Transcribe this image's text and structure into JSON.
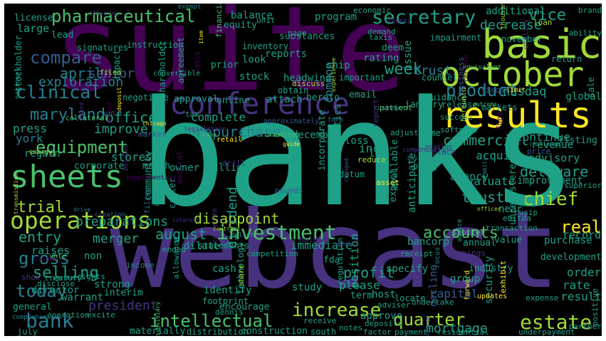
{
  "word_cloud": {
    "background_color": "#000000",
    "palette": [
      "#440154",
      "#46327e",
      "#365c8d",
      "#277f8e",
      "#1fa187",
      "#4ac16d",
      "#a0da39",
      "#fde725"
    ],
    "words": [
      "banks",
      "webcast",
      "suite",
      "results",
      "basic",
      "october",
      "sheets",
      "conference",
      "operations",
      "pharmaceutical",
      "secretary",
      "investment",
      "intellectual",
      "increase",
      "estate",
      "product",
      "compare",
      "clinical",
      "maryland",
      "equipment",
      "repurchase",
      "quarter",
      "bank",
      "today",
      "gross",
      "selling",
      "accounts",
      "chief",
      "real",
      "trial",
      "entry",
      "merger",
      "august",
      "disappoint",
      "president",
      "profit",
      "forward",
      "mortgage",
      "office",
      "nasdaq",
      "commercial",
      "trusts",
      "delaware",
      "week",
      "trust",
      "exploration",
      "april",
      "senior",
      "improve",
      "complete",
      "stores",
      "preparations",
      "dividend",
      "position",
      "immediate",
      "acquire",
      "evaluate",
      "agency",
      "continue",
      "revenue",
      "advisory",
      "improvement",
      "record",
      "purchase",
      "rate",
      "result",
      "order",
      "development",
      "vice",
      "common",
      "decrease",
      "additional",
      "balance",
      "program",
      "substances",
      "reports",
      "stock",
      "headwind",
      "ship",
      "rating",
      "look",
      "email",
      "january",
      "december",
      "loss",
      "low",
      "inc",
      "million",
      "owner",
      "march",
      "corporate",
      "regain",
      "raises",
      "director",
      "general",
      "warrant",
      "strong",
      "interim",
      "cash",
      "identify",
      "encourage",
      "study",
      "specify",
      "please",
      "approve",
      "construction",
      "materially",
      "distribution",
      "south",
      "july",
      "community",
      "incorporate",
      "expect",
      "anticipate",
      "therapeutics",
      "available",
      "fda",
      "term",
      "host",
      "capital",
      "decline",
      "group",
      "security",
      "unregistered",
      "near",
      "industry",
      "bancorp",
      "annual",
      "value",
      "dilute",
      "statements",
      "york",
      "press",
      "large",
      "license",
      "lead",
      "stockholder",
      "instruction",
      "impact",
      "signatures",
      "equity",
      "shareholder",
      "agreement",
      "prior",
      "inventory",
      "approval",
      "online",
      "negotiate",
      "attach",
      "hereto",
      "obtain",
      "november",
      "impairment",
      "issue",
      "deem",
      "important",
      "counsel",
      "guidance",
      "release",
      "markets",
      "global",
      "listing",
      "sale",
      "return",
      "brand",
      "ability",
      "economic",
      "unit",
      "page",
      "demand",
      "taxis",
      "tax",
      "datum",
      "proxy",
      "softness",
      "time",
      "adjust",
      "success",
      "superior",
      "cusip",
      "ebitda",
      "ended",
      "allowance",
      "competition",
      "receipt",
      "operation",
      "excite",
      "treasury",
      "disclose",
      "rights",
      "non",
      "technology",
      "carter",
      "apparent",
      "chapter",
      "regulation",
      "transaction",
      "locate",
      "undertake",
      "expense",
      "footprint",
      "dennis",
      "adviser",
      "receive",
      "deposits",
      "notes",
      "payment",
      "factor",
      "residential",
      "underpayment",
      "positive",
      "partner",
      "buy",
      "focus",
      "outcome",
      "item",
      "hold",
      "offering",
      "stutter",
      "unaudited",
      "place",
      "form",
      "equivalent",
      "utility",
      "certain",
      "drill",
      "charge",
      "changed",
      "ongoing",
      "convertible",
      "advice",
      "media",
      "exhibit",
      "vote",
      "family",
      "national",
      "pounds",
      "creation",
      "compensation",
      "legislation",
      "table",
      "show",
      "subsidiary",
      "chicago",
      "cooperate",
      "believe",
      "exempt",
      "transmission",
      "delist",
      "guide",
      "filing",
      "approximately",
      "county",
      "interest",
      "reduce",
      "comprehensive",
      "thousand",
      "collateral",
      "updates",
      "supplementary",
      "challenge",
      "drive",
      "medical",
      "energy",
      "hereunto",
      "experience",
      "discuss",
      "asset",
      "fiscal",
      "name",
      "officer",
      "contract",
      "portfolio",
      "limit",
      "retail",
      "customer",
      "network",
      "patient",
      "share",
      "loan",
      "deposit",
      "fund",
      "filed",
      "public",
      "report",
      "board",
      "market",
      "price",
      "earnings",
      "income",
      "holder",
      "period",
      "business",
      "financial"
    ]
  }
}
